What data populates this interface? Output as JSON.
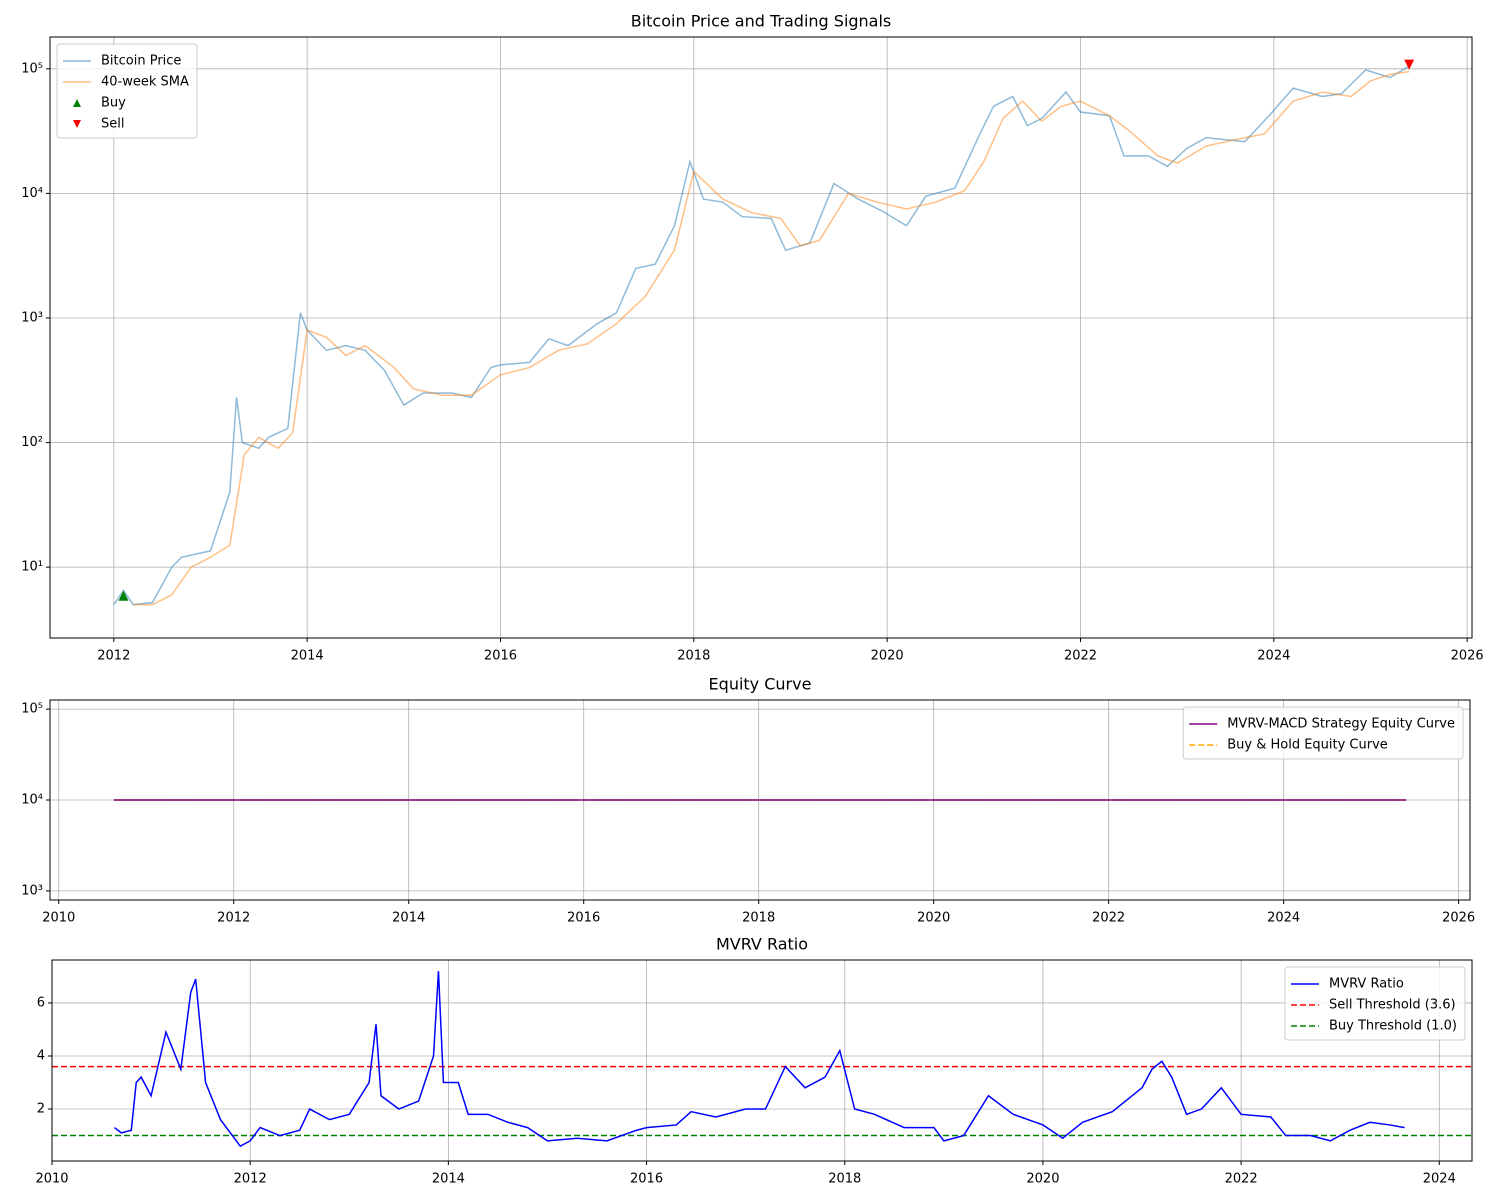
{
  "chart_data": [
    {
      "type": "line",
      "title": "Bitcoin Price and Trading Signals",
      "log_y": true,
      "grid": true,
      "legend": "upper left",
      "xlim": [
        2011.34,
        2026.05
      ],
      "xticks": [
        2012,
        2014,
        2016,
        2018,
        2020,
        2022,
        2024,
        2026
      ],
      "ylim": [
        2.7,
        180000
      ],
      "yticks": [
        {
          "value": 10,
          "label": "10¹"
        },
        {
          "value": 100,
          "label": "10²"
        },
        {
          "value": 1000,
          "label": "10³"
        },
        {
          "value": 10000,
          "label": "10⁴"
        },
        {
          "value": 100000,
          "label": "10⁵"
        }
      ],
      "series": [
        {
          "name": "Bitcoin Price",
          "color": "#1f77b4",
          "alpha": 0.5,
          "x": [
            2012.0,
            2012.1,
            2012.2,
            2012.4,
            2012.6,
            2012.7,
            2012.9,
            2013.0,
            2013.2,
            2013.27,
            2013.33,
            2013.5,
            2013.6,
            2013.8,
            2013.93,
            2014.0,
            2014.2,
            2014.4,
            2014.6,
            2014.8,
            2015.0,
            2015.2,
            2015.5,
            2015.7,
            2015.9,
            2016.0,
            2016.3,
            2016.5,
            2016.7,
            2017.0,
            2017.2,
            2017.4,
            2017.6,
            2017.8,
            2017.96,
            2018.1,
            2018.3,
            2018.5,
            2018.8,
            2018.95,
            2019.2,
            2019.45,
            2019.7,
            2019.95,
            2020.2,
            2020.4,
            2020.7,
            2020.95,
            2021.1,
            2021.3,
            2021.45,
            2021.6,
            2021.85,
            2022.0,
            2022.3,
            2022.45,
            2022.7,
            2022.9,
            2023.1,
            2023.3,
            2023.7,
            2023.95,
            2024.2,
            2024.5,
            2024.7,
            2024.95,
            2025.2,
            2025.4
          ],
          "values": [
            5,
            6.5,
            5,
            5.2,
            10,
            12,
            13,
            13.5,
            40,
            230,
            100,
            90,
            110,
            130,
            1100,
            800,
            550,
            600,
            550,
            380,
            200,
            250,
            250,
            230,
            400,
            420,
            440,
            680,
            600,
            900,
            1100,
            2500,
            2700,
            5500,
            18000,
            9000,
            8500,
            6500,
            6300,
            3500,
            4000,
            12000,
            9000,
            7200,
            5500,
            9500,
            11000,
            29000,
            50000,
            60000,
            35000,
            40000,
            65000,
            45000,
            42000,
            20000,
            20000,
            16500,
            23000,
            28000,
            26000,
            42000,
            70000,
            60000,
            63000,
            98000,
            85000,
            105000
          ]
        },
        {
          "name": "40-week SMA",
          "color": "#ff7f0e",
          "alpha": 0.5,
          "x": [
            2012.2,
            2012.4,
            2012.6,
            2012.8,
            2013.0,
            2013.2,
            2013.35,
            2013.5,
            2013.7,
            2013.85,
            2014.0,
            2014.2,
            2014.4,
            2014.6,
            2014.9,
            2015.1,
            2015.4,
            2015.7,
            2016.0,
            2016.3,
            2016.6,
            2016.9,
            2017.2,
            2017.5,
            2017.8,
            2018.0,
            2018.3,
            2018.6,
            2018.9,
            2019.1,
            2019.3,
            2019.6,
            2019.9,
            2020.2,
            2020.5,
            2020.8,
            2021.0,
            2021.2,
            2021.4,
            2021.6,
            2021.8,
            2022.0,
            2022.3,
            2022.5,
            2022.8,
            2023.0,
            2023.3,
            2023.6,
            2023.9,
            2024.2,
            2024.5,
            2024.8,
            2025.0,
            2025.2,
            2025.4
          ],
          "values": [
            5,
            5,
            6,
            10,
            12,
            15,
            80,
            110,
            90,
            120,
            800,
            700,
            500,
            600,
            400,
            270,
            240,
            240,
            350,
            400,
            550,
            620,
            900,
            1500,
            3500,
            15000,
            9000,
            7000,
            6300,
            3800,
            4200,
            10000,
            8500,
            7500,
            8500,
            10500,
            18000,
            40000,
            55000,
            38000,
            50000,
            55000,
            42000,
            32000,
            20000,
            17500,
            24000,
            27000,
            30000,
            55000,
            65000,
            60000,
            80000,
            90000,
            95000
          ]
        },
        {
          "name": "Buy",
          "color": "#008000",
          "marker": "^",
          "x": [
            2012.1
          ],
          "values": [
            5.9
          ]
        },
        {
          "name": "Sell",
          "color": "#ff0000",
          "marker": "v",
          "x": [
            2025.4
          ],
          "values": [
            108000
          ]
        }
      ]
    },
    {
      "type": "line",
      "title": "Equity Curve",
      "log_y": true,
      "grid": true,
      "legend": "upper right",
      "xlim": [
        2009.9,
        2026.13
      ],
      "xticks": [
        2010,
        2012,
        2014,
        2016,
        2018,
        2020,
        2022,
        2024,
        2026
      ],
      "ylim": [
        794,
        126000
      ],
      "yticks": [
        {
          "value": 1000,
          "label": "10³"
        },
        {
          "value": 10000,
          "label": "10⁴"
        },
        {
          "value": 100000,
          "label": "10⁵"
        }
      ],
      "series": [
        {
          "name": "MVRV-MACD Strategy Equity Curve",
          "color": "#800080",
          "x": [
            2010.63,
            2025.4
          ],
          "values": [
            10000,
            10000
          ]
        },
        {
          "name": "Buy & Hold Equity Curve",
          "color": "#ffa500",
          "dashed": true,
          "x": [
            2010.63,
            2025.4
          ],
          "values": [
            10000,
            10000
          ]
        }
      ]
    },
    {
      "type": "line",
      "title": "MVRV Ratio",
      "log_y": false,
      "grid": true,
      "legend": "upper right",
      "xlim": [
        2010.0,
        2024.33
      ],
      "xticks": [
        2010,
        2012,
        2014,
        2016,
        2018,
        2020,
        2022,
        2024
      ],
      "ylim": [
        0.04,
        7.62
      ],
      "yticks": [
        2,
        4,
        6
      ],
      "series": [
        {
          "name": "MVRV Ratio",
          "color": "#0000ff",
          "x": [
            2010.63,
            2010.7,
            2010.8,
            2010.85,
            2010.9,
            2011.0,
            2011.15,
            2011.3,
            2011.4,
            2011.45,
            2011.55,
            2011.7,
            2011.9,
            2012.0,
            2012.1,
            2012.3,
            2012.5,
            2012.6,
            2012.8,
            2013.0,
            2013.2,
            2013.27,
            2013.32,
            2013.5,
            2013.7,
            2013.85,
            2013.9,
            2013.95,
            2014.1,
            2014.2,
            2014.4,
            2014.6,
            2014.8,
            2015.0,
            2015.3,
            2015.6,
            2015.9,
            2016.0,
            2016.3,
            2016.45,
            2016.7,
            2017.0,
            2017.2,
            2017.4,
            2017.6,
            2017.8,
            2017.95,
            2018.1,
            2018.3,
            2018.6,
            2018.9,
            2019.0,
            2019.2,
            2019.45,
            2019.7,
            2020.0,
            2020.2,
            2020.4,
            2020.7,
            2021.0,
            2021.1,
            2021.2,
            2021.3,
            2021.45,
            2021.6,
            2021.8,
            2022.0,
            2022.3,
            2022.45,
            2022.7,
            2022.9,
            2023.1,
            2023.3,
            2023.5,
            2023.65
          ],
          "values": [
            1.3,
            1.1,
            1.2,
            3.0,
            3.2,
            2.5,
            4.9,
            3.5,
            6.4,
            6.9,
            3.0,
            1.6,
            0.6,
            0.8,
            1.3,
            1.0,
            1.2,
            2.0,
            1.6,
            1.8,
            3.0,
            5.2,
            2.5,
            2.0,
            2.3,
            4.0,
            7.2,
            3.0,
            3.0,
            1.8,
            1.8,
            1.5,
            1.3,
            0.8,
            0.9,
            0.8,
            1.2,
            1.3,
            1.4,
            1.9,
            1.7,
            2.0,
            2.0,
            3.6,
            2.8,
            3.2,
            4.2,
            2.0,
            1.8,
            1.3,
            1.3,
            0.8,
            1.0,
            2.5,
            1.8,
            1.4,
            0.9,
            1.5,
            1.9,
            2.8,
            3.5,
            3.8,
            3.2,
            1.8,
            2.0,
            2.8,
            1.8,
            1.7,
            1.0,
            1.0,
            0.8,
            1.2,
            1.5,
            1.4,
            1.3
          ]
        }
      ],
      "hlines": [
        {
          "name": "Sell Threshold (3.6)",
          "color": "#ff0000",
          "dashed": true,
          "value": 3.6
        },
        {
          "name": "Buy Threshold (1.0)",
          "color": "#008000",
          "dashed": true,
          "value": 1.0
        }
      ]
    }
  ]
}
